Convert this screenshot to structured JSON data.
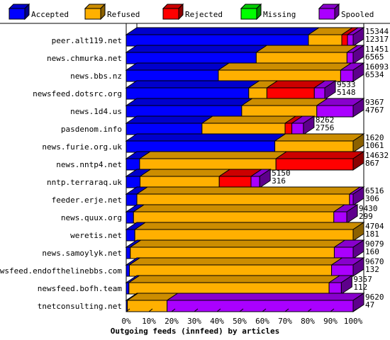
{
  "chart_data": {
    "type": "bar",
    "orientation": "horizontal",
    "stacked": true,
    "three_d": true,
    "title": "",
    "xlabel": "Outgoing feeds (innfeed) by articles",
    "ylabel": "",
    "xlim": [
      0,
      100
    ],
    "x_ticks": [
      "0%",
      "10%",
      "20%",
      "30%",
      "40%",
      "50%",
      "60%",
      "70%",
      "80%",
      "90%",
      "100%"
    ],
    "grid": false,
    "legend_position": "top",
    "colors": {
      "Accepted": "#0000ff",
      "Refused": "#ffb000",
      "Rejected": "#ff0000",
      "Missing": "#00ff00",
      "Spooled": "#aa00ff"
    },
    "categories": [
      "peer.alt119.net",
      "news.chmurka.net",
      "news.bbs.nz",
      "newsfeed.dotsrc.org",
      "news.1d4.us",
      "pasdenom.info",
      "news.furie.org.uk",
      "news.nntp4.net",
      "nntp.terraraq.uk",
      "feeder.erje.net",
      "news.quux.org",
      "weretis.net",
      "news.samoylyk.net",
      "newsfeed.endofthelinebbs.com",
      "newsfeed.bofh.team",
      "tnetconsulting.net"
    ],
    "offered": [
      15344,
      11451,
      16093,
      9533,
      9367,
      8262,
      1620,
      14632,
      5150,
      6516,
      9430,
      4704,
      9079,
      9670,
      9357,
      9620
    ],
    "accepted": [
      12317,
      6565,
      6534,
      5148,
      4767,
      2756,
      1061,
      867,
      316,
      306,
      299,
      181,
      160,
      132,
      112,
      47
    ],
    "series": [
      {
        "name": "Accepted",
        "values": [
          80.3,
          57.3,
          40.6,
          54.0,
          50.9,
          33.4,
          65.5,
          5.9,
          6.1,
          4.7,
          3.2,
          3.8,
          1.8,
          1.4,
          1.2,
          0.5
        ]
      },
      {
        "name": "Refused",
        "values": [
          14.7,
          40.0,
          53.9,
          8.0,
          33.1,
          36.6,
          34.5,
          60.1,
          34.9,
          93.7,
          88.3,
          96.2,
          89.9,
          89.1,
          88.2,
          17.5
        ]
      },
      {
        "name": "Rejected",
        "values": [
          2.5,
          0,
          0,
          20.9,
          0,
          3.0,
          0,
          34.0,
          14.0,
          0,
          0,
          0,
          0,
          0,
          0,
          0
        ]
      },
      {
        "name": "Missing",
        "values": [
          0,
          0,
          0,
          0,
          0,
          0,
          0,
          0,
          0,
          0,
          0,
          0,
          0,
          0,
          0,
          0
        ]
      },
      {
        "name": "Spooled",
        "values": [
          2.5,
          2.7,
          5.5,
          4.6,
          16.0,
          5.1,
          0,
          0,
          3.8,
          1.6,
          5.7,
          0,
          8.3,
          9.5,
          5.4,
          82.0
        ]
      }
    ]
  }
}
